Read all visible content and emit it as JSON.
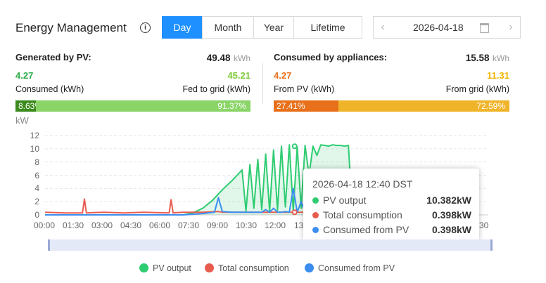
{
  "header": {
    "title": "Energy Management",
    "info_icon": "info-icon",
    "tabs": [
      {
        "label": "Day",
        "active": true
      },
      {
        "label": "Month",
        "active": false
      },
      {
        "label": "Year",
        "active": false
      },
      {
        "label": "Lifetime",
        "active": false
      }
    ],
    "date": "2026-04-18",
    "prev_icon": "chevron-left-icon",
    "next_icon": "chevron-right-icon",
    "calendar_icon": "calendar-icon"
  },
  "generated": {
    "label": "Generated by PV:",
    "value": "49.48",
    "unit": "kWh",
    "left_value": "4.27",
    "left_label": "Consumed (kWh)",
    "right_value": "45.21",
    "right_label": "Fed to grid (kWh)",
    "left_pct": "8.63%",
    "right_pct": "91.37%",
    "left_fraction": 0.0863,
    "left_color": "#3a8a1c",
    "right_color": "#8ad468"
  },
  "consumed": {
    "label": "Consumed by appliances:",
    "value": "15.58",
    "unit": "kWh",
    "left_value": "4.27",
    "left_label": "From PV (kWh)",
    "right_value": "11.31",
    "right_label": "From grid (kWh)",
    "left_pct": "27.41%",
    "right_pct": "72.59%",
    "left_fraction": 0.2741,
    "left_color": "#e8701a",
    "right_color": "#f0b42a"
  },
  "chart_data": {
    "type": "line",
    "ylabel": "kW",
    "ylim": [
      0,
      12
    ],
    "yticks": [
      "0",
      "2",
      "4",
      "6",
      "8",
      "10",
      "12"
    ],
    "xticks": [
      "00:00",
      "01:30",
      "03:00",
      "04:30",
      "06:00",
      "07:30",
      "09:00",
      "10:30",
      "12:00",
      "13",
      "30"
    ],
    "grid": true,
    "series": [
      {
        "name": "PV output",
        "color": "#2ecc71",
        "x": [
          0,
          7.0,
          7.5,
          8.0,
          8.5,
          9.0,
          9.5,
          10.0,
          10.2,
          10.4,
          10.6,
          10.8,
          11.0,
          11.2,
          11.4,
          11.6,
          11.8,
          12.0,
          12.2,
          12.4,
          12.6,
          12.8,
          13.0,
          13.2,
          13.4,
          13.6,
          13.8,
          14.0,
          14.2,
          14.4,
          14.6,
          14.8,
          15.0,
          15.2,
          15.4,
          15.6
        ],
        "y": [
          0,
          0,
          0.3,
          1.0,
          2.2,
          3.8,
          5.2,
          6.8,
          0.6,
          7.6,
          1.0,
          8.4,
          0.8,
          9.2,
          0.5,
          9.8,
          0.7,
          10.4,
          1.2,
          10.6,
          0.6,
          10.3,
          1.0,
          10.5,
          6.0,
          10.4,
          9.0,
          10.6,
          10.5,
          10.4,
          10.6,
          10.5,
          10.5,
          10.4,
          10.5,
          0
        ]
      },
      {
        "name": "Total consumption",
        "color": "#e85c50",
        "x": [
          0,
          1.0,
          1.9,
          2.0,
          2.1,
          3.0,
          4.0,
          5.0,
          6.3,
          6.4,
          6.5,
          7.0,
          8.0,
          8.8,
          9.0,
          10.0,
          11.0,
          12.0,
          12.67,
          13.0,
          14.0,
          15.0,
          15.6
        ],
        "y": [
          0.4,
          0.3,
          0.3,
          2.4,
          0.3,
          0.4,
          0.3,
          0.4,
          0.3,
          2.3,
          0.3,
          0.4,
          0.4,
          0.5,
          0.4,
          0.4,
          0.4,
          0.4,
          0.398,
          0.4,
          0.4,
          0.4,
          0.4
        ]
      },
      {
        "name": "Consumed from PV",
        "color": "#3c8df0",
        "x": [
          0,
          7.0,
          7.5,
          8.0,
          8.6,
          8.8,
          9.0,
          9.5,
          10.0,
          10.5,
          11.0,
          11.2,
          11.4,
          11.6,
          11.8,
          12.0,
          12.2,
          12.4,
          12.6,
          12.8,
          13.0,
          13.2,
          13.4,
          13.6,
          14.0,
          15.0,
          15.6
        ],
        "y": [
          0,
          0,
          0.1,
          0.2,
          0.4,
          2.6,
          0.5,
          0.4,
          0.4,
          0.4,
          0.4,
          0.8,
          0.4,
          1.0,
          0.4,
          0.4,
          0.5,
          0.4,
          4.0,
          0.4,
          2.0,
          0.4,
          0.5,
          0.4,
          0.4,
          0.4,
          0.4
        ]
      }
    ]
  },
  "tooltip": {
    "title": "2026-04-18 12:40 DST",
    "rows": [
      {
        "label": "PV output",
        "value": "10.382kW",
        "color": "#2ecc71"
      },
      {
        "label": "Total consumption",
        "value": "0.398kW",
        "color": "#e85c50"
      },
      {
        "label": "Consumed from PV",
        "value": "0.398kW",
        "color": "#3c8df0"
      }
    ]
  },
  "legend": [
    {
      "label": "PV output",
      "color": "#2ecc71"
    },
    {
      "label": "Total consumption",
      "color": "#e85c50"
    },
    {
      "label": "Consumed from PV",
      "color": "#3c8df0"
    }
  ]
}
